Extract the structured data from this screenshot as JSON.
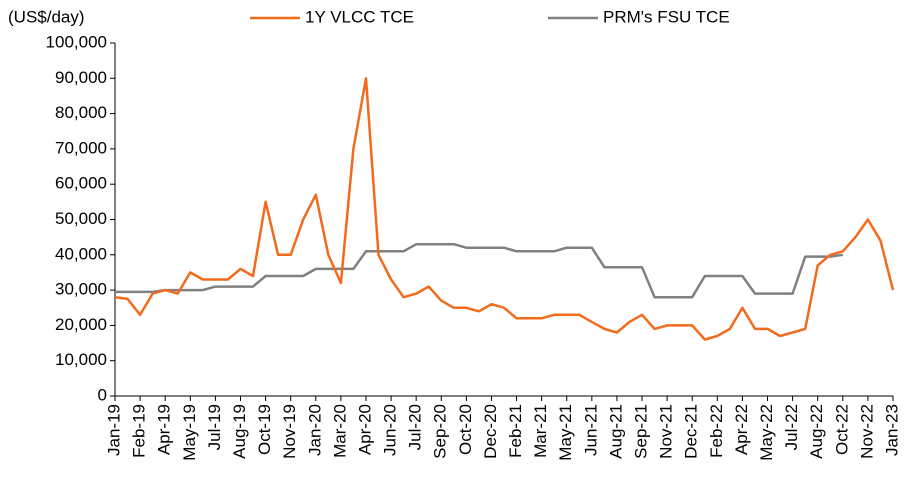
{
  "chart_data": {
    "type": "line",
    "y_axis_label": "(US$/day)",
    "categories": [
      "Jan-19",
      null,
      "Feb-19",
      null,
      "Apr-19",
      null,
      "May-19",
      null,
      "Jul-19",
      null,
      "Aug-19",
      null,
      "Oct-19",
      null,
      "Nov-19",
      null,
      "Jan-20",
      null,
      "Mar-20",
      null,
      "Apr-20",
      null,
      "Jun-20",
      null,
      "Jul-20",
      null,
      "Sep-20",
      null,
      "Oct-20",
      null,
      "Dec-20",
      null,
      "Feb-21",
      null,
      "Mar-21",
      null,
      "May-21",
      null,
      "Jun-21",
      null,
      "Aug-21",
      null,
      "Sep-21",
      null,
      "Nov-21",
      null,
      "Dec-21",
      null,
      "Feb-22",
      null,
      "Apr-22",
      null,
      "May-22",
      null,
      "Jul-22",
      null,
      "Aug-22",
      null,
      "Oct-22",
      null,
      "Nov-22",
      null,
      "Jan-23"
    ],
    "series": [
      {
        "name": "1Y VLCC TCE",
        "color": "#f26b1d",
        "values": [
          28000,
          27500,
          23000,
          29000,
          30000,
          29000,
          35000,
          33000,
          33000,
          33000,
          36000,
          34000,
          55000,
          40000,
          40000,
          50000,
          57000,
          40000,
          32000,
          70000,
          90000,
          40000,
          33000,
          28000,
          29000,
          31000,
          27000,
          25000,
          25000,
          24000,
          26000,
          25000,
          22000,
          22000,
          22000,
          23000,
          23000,
          23000,
          21000,
          19000,
          18000,
          21000,
          23000,
          19000,
          20000,
          20000,
          20000,
          16000,
          17000,
          19000,
          25000,
          19000,
          19000,
          17000,
          18000,
          19000,
          37000,
          40000,
          41000,
          45000,
          50000,
          44000,
          30000
        ]
      },
      {
        "name": "PRM's FSU TCE",
        "color": "#808080",
        "values": [
          29500,
          29500,
          29500,
          29500,
          30000,
          30000,
          30000,
          30000,
          31000,
          31000,
          31000,
          31000,
          34000,
          34000,
          34000,
          34000,
          36000,
          36000,
          36000,
          36000,
          41000,
          41000,
          41000,
          41000,
          43000,
          43000,
          43000,
          43000,
          42000,
          42000,
          42000,
          42000,
          41000,
          41000,
          41000,
          41000,
          42000,
          42000,
          42000,
          36500,
          36500,
          36500,
          36500,
          28000,
          28000,
          28000,
          28000,
          34000,
          34000,
          34000,
          34000,
          29000,
          29000,
          29000,
          29000,
          39500,
          39500,
          39500,
          40000,
          null,
          null,
          null,
          null
        ]
      }
    ],
    "ylim": [
      0,
      100000
    ],
    "yticks": [
      0,
      {
        "value": 10000,
        "label": "10,000"
      },
      {
        "value": 20000,
        "label": "20,000"
      },
      {
        "value": 30000,
        "label": "30,000"
      },
      {
        "value": 40000,
        "label": "40,000"
      },
      {
        "value": 50000,
        "label": "50,000"
      },
      {
        "value": 60000,
        "label": "60,000"
      },
      {
        "value": 70000,
        "label": "70,000"
      },
      {
        "value": 80000,
        "label": "80,000"
      },
      {
        "value": 90000,
        "label": "90,000"
      },
      {
        "value": 100000,
        "label": "100,000"
      }
    ],
    "legend": "top"
  }
}
